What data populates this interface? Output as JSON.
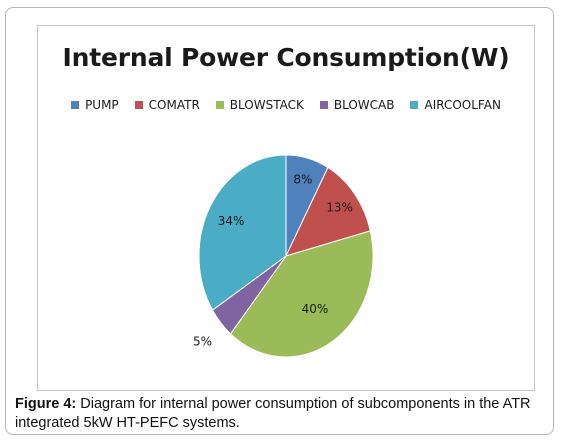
{
  "chart_data": {
    "type": "pie",
    "title": "Internal Power Consumption(W)",
    "categories": [
      "PUMP",
      "COMATR",
      "BLOWSTACK",
      "BLOWCAB",
      "AIRCOOLFAN"
    ],
    "values": [
      8,
      13,
      40,
      5,
      34
    ],
    "labels": [
      "8%",
      "13%",
      "40%",
      "5%",
      "34%"
    ],
    "colors": [
      "#4f81bd",
      "#c0504d",
      "#9bbb59",
      "#8064a2",
      "#4bacc6"
    ],
    "legend": "top"
  },
  "caption": {
    "label": "Figure 4:",
    "text": " Diagram for internal power consumption of subcomponents in the ATR integrated 5kW HT-PEFC systems."
  }
}
